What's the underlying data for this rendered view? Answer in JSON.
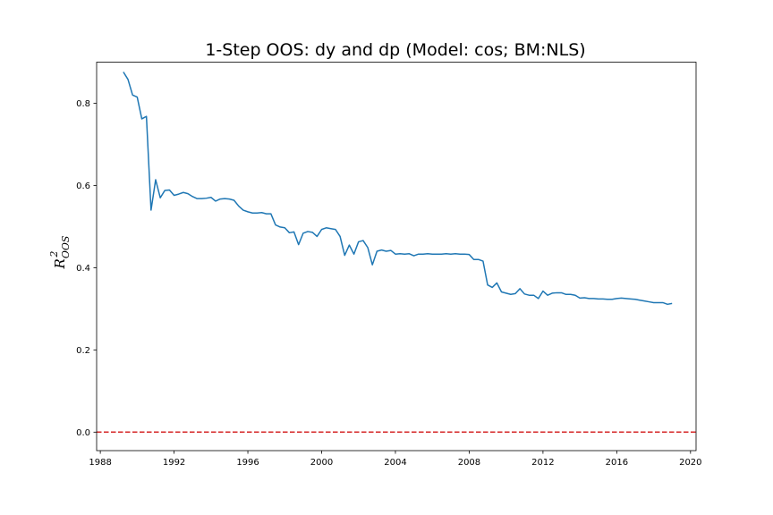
{
  "chart_data": {
    "type": "line",
    "title": "1-Step OOS: dy and dp (Model: cos; BM:NLS)",
    "xlabel": "",
    "ylabel": {
      "base": "R",
      "sup": "2",
      "sub": "OOS"
    },
    "xlim": [
      1987.8,
      2020.3
    ],
    "ylim": [
      -0.045,
      0.9
    ],
    "xticks": [
      1988,
      1992,
      1996,
      2000,
      2004,
      2008,
      2012,
      2016,
      2020
    ],
    "yticks": [
      0.0,
      0.2,
      0.4,
      0.6,
      0.8
    ],
    "ytick_labels": [
      "0.0",
      "0.2",
      "0.4",
      "0.6",
      "0.8"
    ],
    "grid": false,
    "reference_line": {
      "y": 0.0,
      "color": "#d62728",
      "style": "dashed"
    },
    "series": [
      {
        "color": "#1f77b4",
        "x": [
          1989.25,
          1989.5,
          1989.75,
          1990.0,
          1990.25,
          1990.5,
          1990.75,
          1991.0,
          1991.25,
          1991.5,
          1991.75,
          1992.0,
          1992.25,
          1992.5,
          1992.75,
          1993.0,
          1993.25,
          1993.5,
          1993.75,
          1994.0,
          1994.25,
          1994.5,
          1994.75,
          1995.0,
          1995.25,
          1995.5,
          1995.75,
          1996.0,
          1996.25,
          1996.5,
          1996.75,
          1997.0,
          1997.25,
          1997.5,
          1997.75,
          1998.0,
          1998.25,
          1998.5,
          1998.75,
          1999.0,
          1999.25,
          1999.5,
          1999.75,
          2000.0,
          2000.25,
          2000.5,
          2000.75,
          2001.0,
          2001.25,
          2001.5,
          2001.75,
          2002.0,
          2002.25,
          2002.5,
          2002.75,
          2003.0,
          2003.25,
          2003.5,
          2003.75,
          2004.0,
          2004.25,
          2004.5,
          2004.75,
          2005.0,
          2005.25,
          2005.5,
          2005.75,
          2006.0,
          2006.25,
          2006.5,
          2006.75,
          2007.0,
          2007.25,
          2007.5,
          2007.75,
          2008.0,
          2008.25,
          2008.5,
          2008.75,
          2009.0,
          2009.25,
          2009.5,
          2009.75,
          2010.0,
          2010.25,
          2010.5,
          2010.75,
          2011.0,
          2011.25,
          2011.5,
          2011.75,
          2012.0,
          2012.25,
          2012.5,
          2012.75,
          2013.0,
          2013.25,
          2013.5,
          2013.75,
          2014.0,
          2014.25,
          2014.5,
          2014.75,
          2015.0,
          2015.25,
          2015.5,
          2015.75,
          2016.0,
          2016.25,
          2016.5,
          2016.75,
          2017.0,
          2017.25,
          2017.5,
          2017.75,
          2018.0,
          2018.25,
          2018.5,
          2018.75,
          2019.0
        ],
        "y": [
          0.876,
          0.858,
          0.82,
          0.815,
          0.762,
          0.768,
          0.54,
          0.614,
          0.57,
          0.588,
          0.589,
          0.576,
          0.579,
          0.583,
          0.58,
          0.573,
          0.568,
          0.568,
          0.569,
          0.571,
          0.562,
          0.567,
          0.568,
          0.567,
          0.564,
          0.55,
          0.54,
          0.536,
          0.533,
          0.533,
          0.534,
          0.531,
          0.531,
          0.504,
          0.499,
          0.497,
          0.485,
          0.487,
          0.456,
          0.484,
          0.488,
          0.486,
          0.476,
          0.493,
          0.497,
          0.495,
          0.493,
          0.476,
          0.43,
          0.455,
          0.433,
          0.463,
          0.466,
          0.449,
          0.407,
          0.44,
          0.443,
          0.44,
          0.442,
          0.433,
          0.434,
          0.433,
          0.434,
          0.429,
          0.433,
          0.433,
          0.434,
          0.433,
          0.433,
          0.433,
          0.434,
          0.433,
          0.434,
          0.433,
          0.433,
          0.432,
          0.42,
          0.42,
          0.416,
          0.358,
          0.352,
          0.363,
          0.341,
          0.338,
          0.335,
          0.337,
          0.349,
          0.336,
          0.333,
          0.333,
          0.325,
          0.343,
          0.333,
          0.338,
          0.339,
          0.339,
          0.335,
          0.335,
          0.333,
          0.326,
          0.327,
          0.325,
          0.325,
          0.324,
          0.324,
          0.323,
          0.323,
          0.325,
          0.326,
          0.325,
          0.324,
          0.323,
          0.321,
          0.319,
          0.317,
          0.315,
          0.315,
          0.315,
          0.311,
          0.313
        ]
      }
    ]
  }
}
